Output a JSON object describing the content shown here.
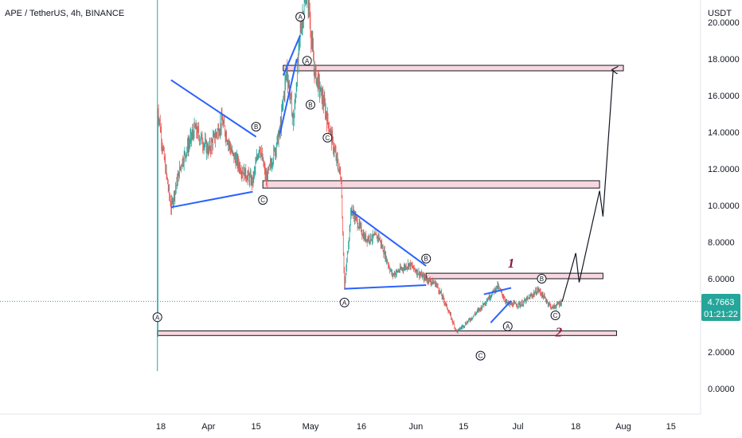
{
  "header": {
    "title": "APE / TetherUS, 4h, BINANCE",
    "currency": "USDT"
  },
  "price_badge": {
    "price": "4.7663",
    "countdown": "01:21:22",
    "color": "#26a69a"
  },
  "colors": {
    "up": "#26a69a",
    "down": "#ef5350",
    "trendline": "#2962ff",
    "zone": "#f8d7de",
    "label": "#8b1a3a"
  },
  "chart_data": {
    "type": "candlestick",
    "title": "APE / TetherUS, 4h, BINANCE",
    "ylabel": "USDT",
    "ylim": [
      -1.2,
      21.0
    ],
    "x_tick_labels": [
      "18",
      "Apr",
      "15",
      "May",
      "16",
      "Jun",
      "15",
      "Jul",
      "18",
      "Aug",
      "15"
    ],
    "y_tick_labels": [
      "20.0000",
      "18.0000",
      "16.0000",
      "14.0000",
      "12.0000",
      "10.0000",
      "8.0000",
      "6.0000",
      "4.0000",
      "2.0000",
      "0.0000"
    ],
    "last_price": 4.7663,
    "price_path": [
      {
        "x": "2022-03-17",
        "y": 3.1
      },
      {
        "x": "2022-03-17",
        "y": 15.5
      },
      {
        "x": "2022-03-19",
        "y": 12.5
      },
      {
        "x": "2022-03-21",
        "y": 9.9
      },
      {
        "x": "2022-03-24",
        "y": 12.3
      },
      {
        "x": "2022-03-28",
        "y": 14.2
      },
      {
        "x": "2022-04-01",
        "y": 13.0
      },
      {
        "x": "2022-04-05",
        "y": 14.6
      },
      {
        "x": "2022-04-08",
        "y": 12.8
      },
      {
        "x": "2022-04-11",
        "y": 11.9
      },
      {
        "x": "2022-04-14",
        "y": 11.3
      },
      {
        "x": "2022-04-16",
        "y": 13.3
      },
      {
        "x": "2022-04-18",
        "y": 11.4
      },
      {
        "x": "2022-04-22",
        "y": 14.0
      },
      {
        "x": "2022-04-24",
        "y": 17.5
      },
      {
        "x": "2022-04-26",
        "y": 14.5
      },
      {
        "x": "2022-04-28",
        "y": 19.5
      },
      {
        "x": "2022-04-30",
        "y": 22.0
      },
      {
        "x": "2022-05-02",
        "y": 17.5
      },
      {
        "x": "2022-05-05",
        "y": 15.5
      },
      {
        "x": "2022-05-08",
        "y": 13.0
      },
      {
        "x": "2022-05-10",
        "y": 11.5
      },
      {
        "x": "2022-05-11",
        "y": 5.5
      },
      {
        "x": "2022-05-13",
        "y": 9.8
      },
      {
        "x": "2022-05-17",
        "y": 8.2
      },
      {
        "x": "2022-05-21",
        "y": 8.3
      },
      {
        "x": "2022-05-25",
        "y": 6.2
      },
      {
        "x": "2022-05-30",
        "y": 6.8
      },
      {
        "x": "2022-06-03",
        "y": 6.1
      },
      {
        "x": "2022-06-07",
        "y": 5.7
      },
      {
        "x": "2022-06-10",
        "y": 4.5
      },
      {
        "x": "2022-06-13",
        "y": 3.1
      },
      {
        "x": "2022-06-17",
        "y": 3.8
      },
      {
        "x": "2022-06-20",
        "y": 4.4
      },
      {
        "x": "2022-06-25",
        "y": 5.6
      },
      {
        "x": "2022-06-28",
        "y": 4.6
      },
      {
        "x": "2022-07-02",
        "y": 4.6
      },
      {
        "x": "2022-07-07",
        "y": 5.4
      },
      {
        "x": "2022-07-11",
        "y": 4.4
      },
      {
        "x": "2022-07-14",
        "y": 4.75
      }
    ],
    "zones": [
      {
        "y_low": 17.35,
        "y_high": 17.65,
        "x_start": "2022-04-23",
        "x_end": "2022-08-01"
      },
      {
        "y_low": 10.95,
        "y_high": 11.35,
        "x_start": "2022-04-17",
        "x_end": "2022-07-25"
      },
      {
        "y_low": 6.0,
        "y_high": 6.3,
        "x_start": "2022-06-04",
        "x_end": "2022-07-26"
      },
      {
        "y_low": 2.9,
        "y_high": 3.15,
        "x_start": "2022-03-17",
        "x_end": "2022-07-30"
      }
    ],
    "trendlines": [
      {
        "from": {
          "x": "2022-03-21",
          "y": 16.85
        },
        "to": {
          "x": "2022-04-15",
          "y": 13.75
        }
      },
      {
        "from": {
          "x": "2022-03-21",
          "y": 9.9
        },
        "to": {
          "x": "2022-04-14",
          "y": 10.75
        }
      },
      {
        "from": {
          "x": "2022-04-22",
          "y": 13.9
        },
        "to": {
          "x": "2022-04-27",
          "y": 18.0
        }
      },
      {
        "from": {
          "x": "2022-04-23",
          "y": 17.1
        },
        "to": {
          "x": "2022-04-28",
          "y": 19.3
        }
      },
      {
        "from": {
          "x": "2022-05-13",
          "y": 9.7
        },
        "to": {
          "x": "2022-06-04",
          "y": 6.7
        }
      },
      {
        "from": {
          "x": "2022-05-11",
          "y": 5.45
        },
        "to": {
          "x": "2022-06-04",
          "y": 5.65
        }
      },
      {
        "from": {
          "x": "2022-06-21",
          "y": 5.15
        },
        "to": {
          "x": "2022-06-29",
          "y": 5.5
        }
      },
      {
        "from": {
          "x": "2022-06-23",
          "y": 3.6
        },
        "to": {
          "x": "2022-06-29",
          "y": 4.8
        }
      }
    ],
    "projection": [
      {
        "x": "2022-07-14",
        "y": 4.75
      },
      {
        "x": "2022-07-18",
        "y": 7.4
      },
      {
        "x": "2022-07-19",
        "y": 5.8
      },
      {
        "x": "2022-07-25",
        "y": 10.8
      },
      {
        "x": "2022-07-26",
        "y": 9.4
      },
      {
        "x": "2022-07-29",
        "y": 17.4
      }
    ],
    "wave_labels": [
      {
        "text": "A",
        "x": "2022-03-17",
        "y": 3.9
      },
      {
        "text": "B",
        "x": "2022-04-15",
        "y": 14.3
      },
      {
        "text": "C",
        "x": "2022-04-17",
        "y": 10.3
      },
      {
        "text": "A",
        "x": "2022-04-28",
        "y": 20.3
      },
      {
        "text": "A",
        "x": "2022-04-30",
        "y": 17.9
      },
      {
        "text": "B",
        "x": "2022-05-01",
        "y": 15.5
      },
      {
        "text": "C",
        "x": "2022-05-06",
        "y": 13.7
      },
      {
        "text": "A",
        "x": "2022-05-11",
        "y": 4.7
      },
      {
        "text": "B",
        "x": "2022-06-04",
        "y": 7.1
      },
      {
        "text": "C",
        "x": "2022-06-20",
        "y": 1.8
      },
      {
        "text": "A",
        "x": "2022-06-28",
        "y": 3.4
      },
      {
        "text": "B",
        "x": "2022-07-08",
        "y": 6.0
      },
      {
        "text": "C",
        "x": "2022-07-12",
        "y": 4.0
      }
    ],
    "annotations": [
      {
        "text": "1",
        "x": "2022-06-29",
        "y": 6.6
      },
      {
        "text": "2",
        "x": "2022-07-13",
        "y": 2.85
      }
    ]
  }
}
